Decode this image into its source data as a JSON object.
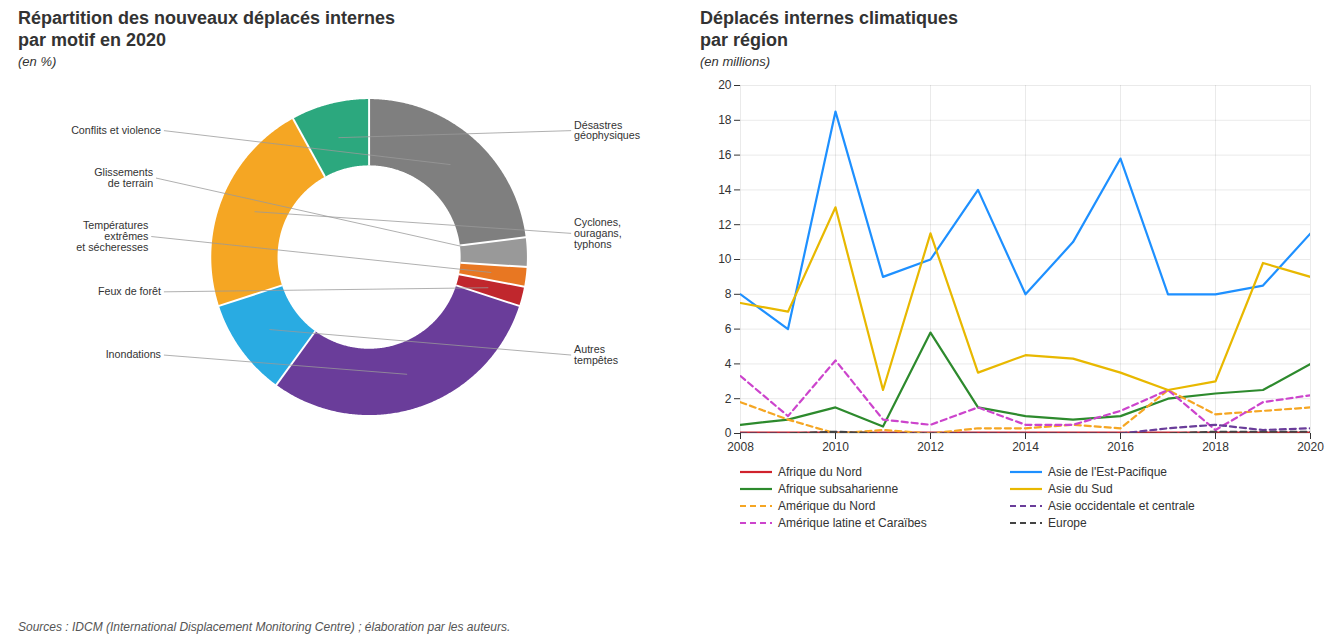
{
  "chart_data": [
    {
      "type": "pie",
      "title": "Répartition des nouveaux déplacés internes\npar motif en 2020",
      "subtitle": "(en %)",
      "categories": [
        "Conflits et violence",
        "Glissements\nde terrain",
        "Températures\nextrêmes\net sécheresses",
        "Feux de forêt",
        "Inondations",
        "Autres\ntempêtes",
        "Cyclones,\nouragans,\ntyphons",
        "Désastres\ngéophysiques"
      ],
      "values": [
        23,
        3,
        2,
        2,
        30,
        10,
        22,
        8
      ],
      "colors": [
        "#7f7f7f",
        "#999999",
        "#e87722",
        "#c0272d",
        "#6a3d9a",
        "#29abe2",
        "#f5a623",
        "#2ca87e"
      ],
      "caption": "Sources : IDCM (International Displacement Monitoring Centre) ; élaboration par les auteurs."
    },
    {
      "type": "line",
      "title": "Déplacés internes climatiques\npar région",
      "subtitle": "(en millions)",
      "x": [
        2008,
        2009,
        2010,
        2011,
        2012,
        2013,
        2014,
        2015,
        2016,
        2017,
        2018,
        2019,
        2020
      ],
      "series": [
        {
          "name": "Afrique du Nord",
          "color": "#d0222d",
          "line_style": "solid",
          "values": [
            0.05,
            0.05,
            0.05,
            0.05,
            0.05,
            0.05,
            0.05,
            0.05,
            0.05,
            0.05,
            0.05,
            0.05,
            0.05
          ]
        },
        {
          "name": "Afrique subsaharienne",
          "color": "#2d8a2d",
          "line_style": "solid",
          "values": [
            0.5,
            0.8,
            1.5,
            0.4,
            5.8,
            1.5,
            1.0,
            0.8,
            1.0,
            2.0,
            2.3,
            2.5,
            4.0
          ]
        },
        {
          "name": "Amérique du Nord",
          "color": "#f5a623",
          "line_style": "dashed",
          "values": [
            1.8,
            0.8,
            0.0,
            0.2,
            0.0,
            0.3,
            0.3,
            0.5,
            0.3,
            2.5,
            1.1,
            1.3,
            1.5
          ]
        },
        {
          "name": "Amérique latine et Caraïbes",
          "color": "#cc44cc",
          "line_style": "dashed",
          "values": [
            3.3,
            1.0,
            4.2,
            0.8,
            0.5,
            1.5,
            0.5,
            0.5,
            1.3,
            2.5,
            0.2,
            1.8,
            2.2
          ]
        },
        {
          "name": "Asie de l'Est-Pacifique",
          "color": "#1e90ff",
          "line_style": "solid",
          "values": [
            8.0,
            6.0,
            18.5,
            9.0,
            10.0,
            14.0,
            8.0,
            11.0,
            15.8,
            8.0,
            8.0,
            8.5,
            11.5
          ]
        },
        {
          "name": "Asie du Sud",
          "color": "#e8b800",
          "line_style": "solid",
          "values": [
            7.5,
            7.0,
            13.0,
            2.5,
            11.5,
            3.5,
            4.5,
            4.3,
            3.5,
            2.5,
            3.0,
            9.8,
            9.0
          ]
        },
        {
          "name": "Asie occidentale et centrale",
          "color": "#6a3d9a",
          "line_style": "dashed",
          "values": [
            0.0,
            0.0,
            0.0,
            0.0,
            0.0,
            0.0,
            0.0,
            0.0,
            0.0,
            0.3,
            0.5,
            0.2,
            0.3
          ]
        },
        {
          "name": "Europe",
          "color": "#444444",
          "line_style": "dashed",
          "values": [
            0.0,
            0.0,
            0.1,
            0.0,
            0.0,
            0.0,
            0.0,
            0.0,
            0.0,
            0.0,
            0.1,
            0.1,
            0.1
          ]
        }
      ],
      "xlim": [
        2008,
        2020
      ],
      "xticks": [
        2008,
        2010,
        2012,
        2014,
        2016,
        2018,
        2020
      ],
      "ylim": [
        0,
        20
      ],
      "yticks": [
        0,
        2,
        4,
        6,
        8,
        10,
        12,
        14,
        16,
        18,
        20
      ],
      "grid": true,
      "legend": "bottom"
    }
  ]
}
